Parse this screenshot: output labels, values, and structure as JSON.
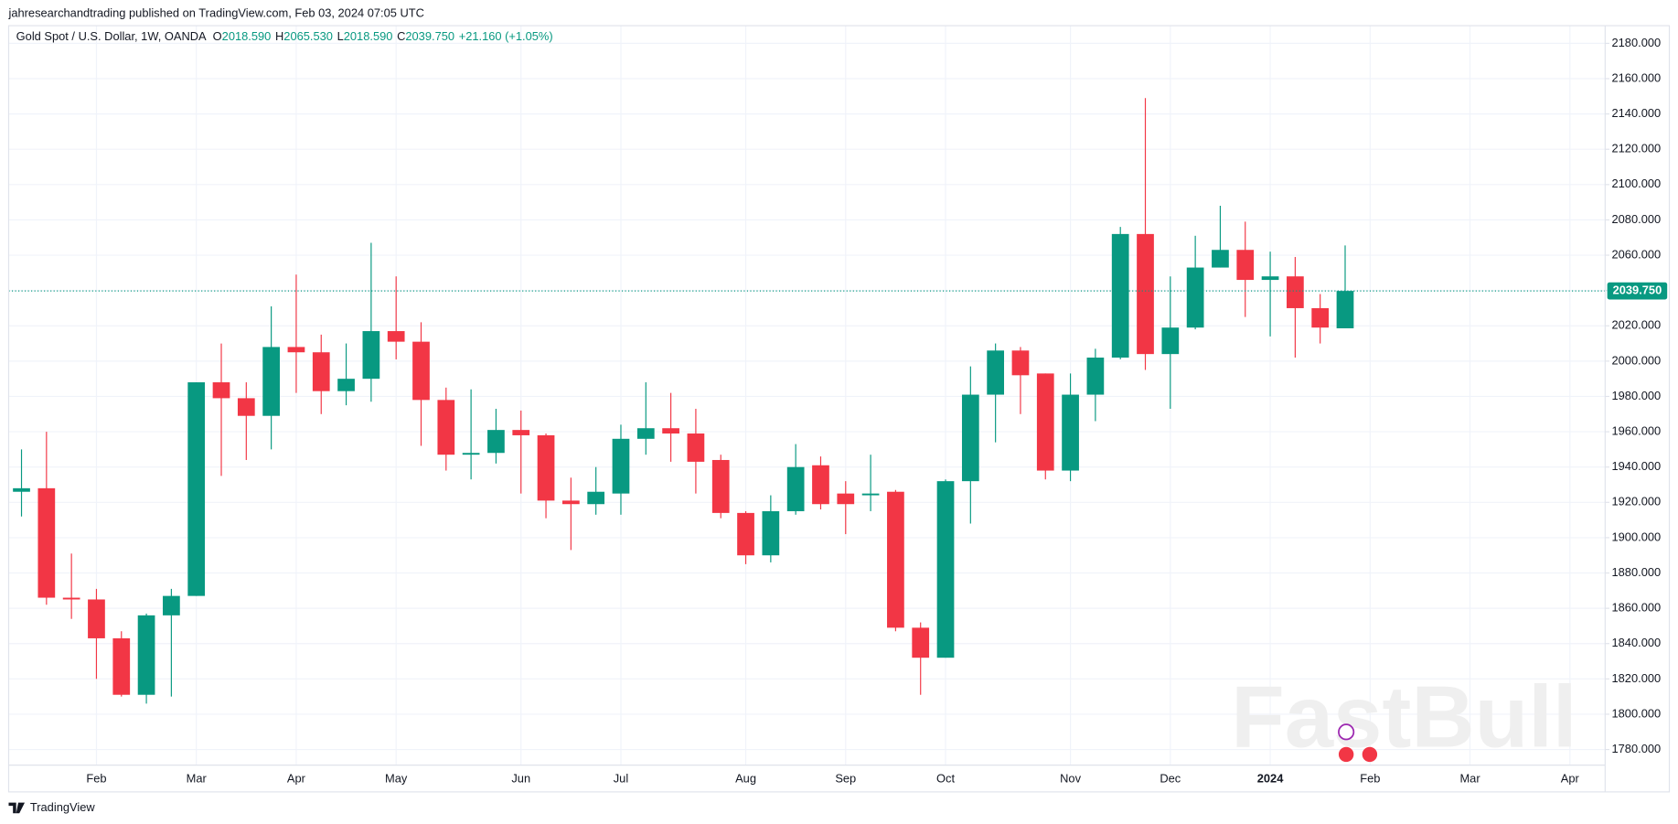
{
  "chart_data": {
    "type": "candlestick",
    "header": "jahresearchandtrading published on TradingView.com, Feb 03, 2024 07:05 UTC",
    "title": "Gold Spot / U.S. Dollar, 1W, OANDA",
    "ohlc_legend": [
      {
        "key": "O",
        "value": "2018.590"
      },
      {
        "key": "H",
        "value": "2065.530"
      },
      {
        "key": "L",
        "value": "2018.590"
      },
      {
        "key": "C",
        "value": "2039.750"
      }
    ],
    "change": "+21.160 (+1.05%)",
    "categories": [
      null,
      null,
      null,
      "Feb",
      null,
      null,
      null,
      "Mar",
      null,
      null,
      null,
      "Apr",
      null,
      null,
      null,
      "May",
      null,
      null,
      null,
      null,
      "Jun",
      null,
      null,
      null,
      "Jul",
      null,
      null,
      null,
      null,
      "Aug",
      null,
      null,
      null,
      "Sep",
      null,
      null,
      null,
      "Oct",
      null,
      null,
      null,
      null,
      "Nov",
      null,
      null,
      null,
      "Dec",
      null,
      null,
      null,
      "2024",
      null,
      null,
      null
    ],
    "future_months": [
      "Feb",
      "Mar",
      "Apr"
    ],
    "open": [
      1926,
      1928,
      1866,
      1865,
      1843,
      1811,
      1856,
      1867,
      1988,
      1979,
      1969,
      2008,
      2005,
      1983,
      1990,
      2017,
      2011,
      1978,
      1947,
      1948,
      1961,
      1958,
      1921,
      1919,
      1925,
      1956,
      1962,
      1959,
      1944,
      1914,
      1890,
      1915,
      1941,
      1925,
      1924,
      1926,
      1849,
      1832,
      1932,
      1981,
      2006,
      1993,
      1938,
      1981,
      2002,
      2072,
      2004,
      2019,
      2053,
      2063,
      2046,
      2048,
      2030,
      2018.59
    ],
    "high": [
      1950,
      1960,
      1891,
      1871,
      1847,
      1857,
      1871,
      1988,
      2010,
      1988,
      2031,
      2049,
      2015,
      2010,
      2067,
      2048,
      2022,
      1985,
      1984,
      1973,
      1972,
      1959,
      1934,
      1940,
      1964,
      1988,
      1982,
      1973,
      1947,
      1915,
      1924,
      1953,
      1946,
      1932,
      1947,
      1927,
      1852,
      1933,
      1997,
      2010,
      2008,
      1993,
      1993,
      2007,
      2076,
      2149,
      2048,
      2071,
      2088,
      2079,
      2062,
      2059,
      2038,
      2065.53
    ],
    "low": [
      1912,
      1862,
      1854,
      1820,
      1810,
      1806,
      1810,
      1867,
      1935,
      1944,
      1950,
      1982,
      1970,
      1975,
      1977,
      2001,
      1952,
      1938,
      1933,
      1942,
      1925,
      1911,
      1893,
      1913,
      1913,
      1947,
      1943,
      1925,
      1911,
      1885,
      1886,
      1913,
      1916,
      1902,
      1915,
      1847,
      1811,
      1832,
      1908,
      1954,
      1970,
      1933,
      1932,
      1966,
      2001,
      1995,
      1973,
      2018,
      2053,
      2025,
      2014,
      2002,
      2010,
      2018.59
    ],
    "close": [
      1928,
      1866,
      1865,
      1843,
      1811,
      1856,
      1867,
      1988,
      1979,
      1969,
      2008,
      2005,
      1983,
      1990,
      2017,
      2011,
      1978,
      1947,
      1948,
      1961,
      1958,
      1921,
      1919,
      1926,
      1956,
      1962,
      1959,
      1943,
      1914,
      1890,
      1915,
      1940,
      1919,
      1919,
      1925,
      1849,
      1832,
      1932,
      1981,
      2006,
      1992,
      1938,
      1981,
      2002,
      2072,
      2004,
      2019,
      2053,
      2063,
      2046,
      2048,
      2030,
      2019,
      2039.75
    ],
    "up_color": "#089981",
    "down_color": "#f23645",
    "ylim": [
      1756,
      2190
    ],
    "yticks": [
      {
        "value": 1780,
        "label": "1780.000"
      },
      {
        "value": 1800,
        "label": "1800.000"
      },
      {
        "value": 1820,
        "label": "1820.000"
      },
      {
        "value": 1840,
        "label": "1840.000"
      },
      {
        "value": 1860,
        "label": "1860.000"
      },
      {
        "value": 1880,
        "label": "1880.000"
      },
      {
        "value": 1900,
        "label": "1900.000"
      },
      {
        "value": 1920,
        "label": "1920.000"
      },
      {
        "value": 1940,
        "label": "1940.000"
      },
      {
        "value": 1960,
        "label": "1960.000"
      },
      {
        "value": 1980,
        "label": "1980.000"
      },
      {
        "value": 2000,
        "label": "2000.000"
      },
      {
        "value": 2020,
        "label": "2020.000"
      },
      {
        "value": 2040,
        "label": "2040.000"
      },
      {
        "value": 2060,
        "label": "2060.000"
      },
      {
        "value": 2080,
        "label": "2080.000"
      },
      {
        "value": 2100,
        "label": "2100.000"
      },
      {
        "value": 2120,
        "label": "2120.000"
      },
      {
        "value": 2140,
        "label": "2140.000"
      },
      {
        "value": 2160,
        "label": "2160.000"
      },
      {
        "value": 2180,
        "label": "2180.000"
      }
    ],
    "last_price": {
      "value": 2039.75,
      "label": "2039.750"
    },
    "grid": true,
    "watermark": "FastBull",
    "footer": "TradingView"
  }
}
